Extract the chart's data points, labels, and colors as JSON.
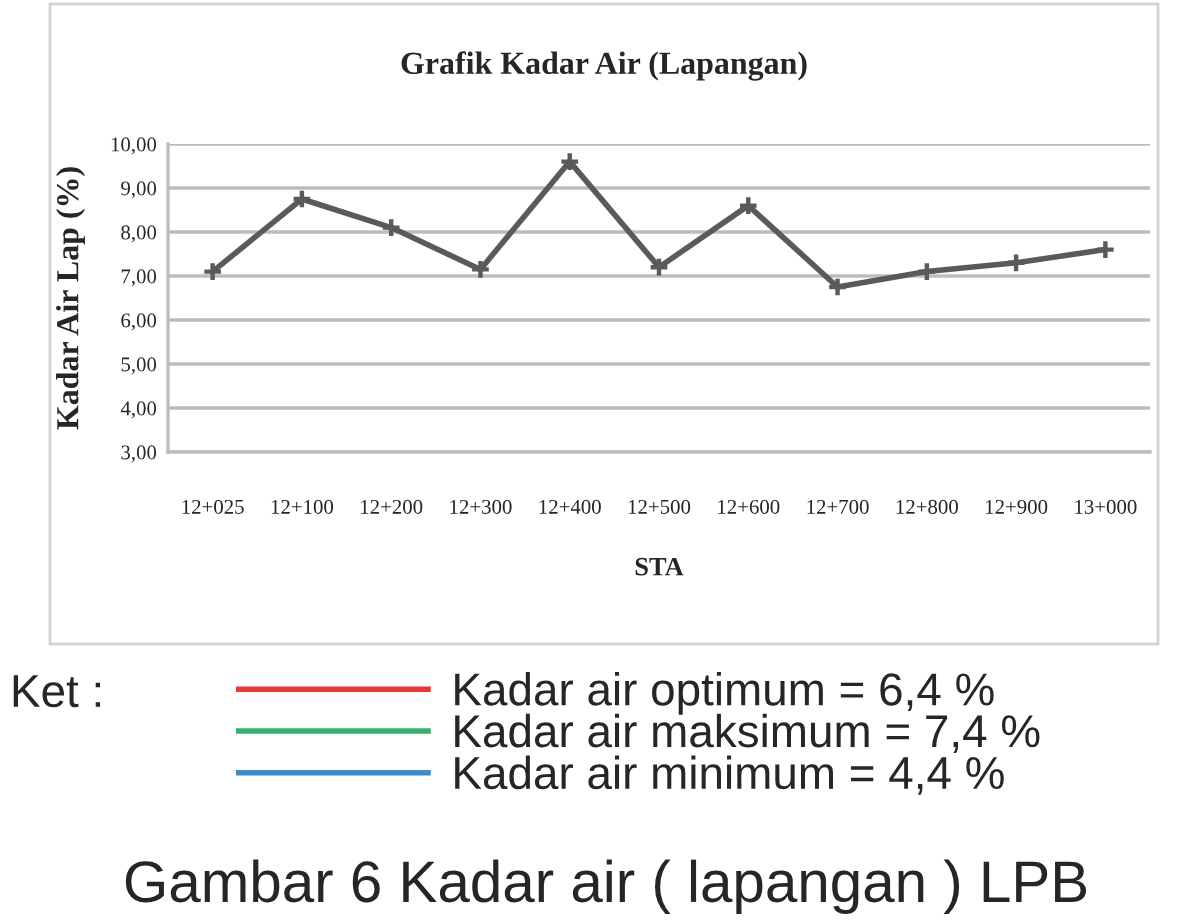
{
  "chart_data": {
    "type": "line",
    "title": "Grafik Kadar Air (Lapangan)",
    "xlabel": "STA",
    "ylabel": "Kadar Air Lap (%)",
    "legend_title": "Ket :",
    "categories": [
      "12+025",
      "12+100",
      "12+200",
      "12+300",
      "12+400",
      "12+500",
      "12+600",
      "12+700",
      "12+800",
      "12+900",
      "13+000"
    ],
    "series": [
      {
        "color": "#5a5a5a",
        "values": [
          7.1,
          8.75,
          8.1,
          7.15,
          9.6,
          7.2,
          8.6,
          6.75,
          7.1,
          7.3,
          7.6
        ]
      },
      {
        "name": "Kadar air optimum = 6,4 %",
        "color": "#e53a3a",
        "values": [
          null,
          null,
          null,
          null,
          null,
          null,
          null,
          null,
          null,
          null,
          null
        ]
      },
      {
        "name": "Kadar air maksimum = 7,4 %",
        "color": "#33b06e",
        "values": [
          null,
          null,
          null,
          null,
          null,
          null,
          null,
          null,
          null,
          null,
          null
        ]
      },
      {
        "name": "Kadar air minimum = 4,4 %",
        "color": "#3a8ccc",
        "values": [
          null,
          null,
          null,
          null,
          null,
          null,
          null,
          null,
          null,
          null,
          null
        ]
      }
    ],
    "ylim": [
      3,
      10
    ],
    "yticks": [
      {
        "value": 3,
        "label": "3,00"
      },
      {
        "value": 4,
        "label": "4,00"
      },
      {
        "value": 5,
        "label": "5,00"
      },
      {
        "value": 6,
        "label": "6,00"
      },
      {
        "value": 7,
        "label": "7,00"
      },
      {
        "value": 8,
        "label": "8,00"
      },
      {
        "value": 9,
        "label": "9,00"
      },
      {
        "value": 10,
        "label": "10,00"
      }
    ],
    "grid": "y",
    "legend": "bottom",
    "marker": "cross",
    "line_style": "solid",
    "annotations": [
      "Gambar 6 Kadar air ( lapangan ) LPB"
    ]
  }
}
